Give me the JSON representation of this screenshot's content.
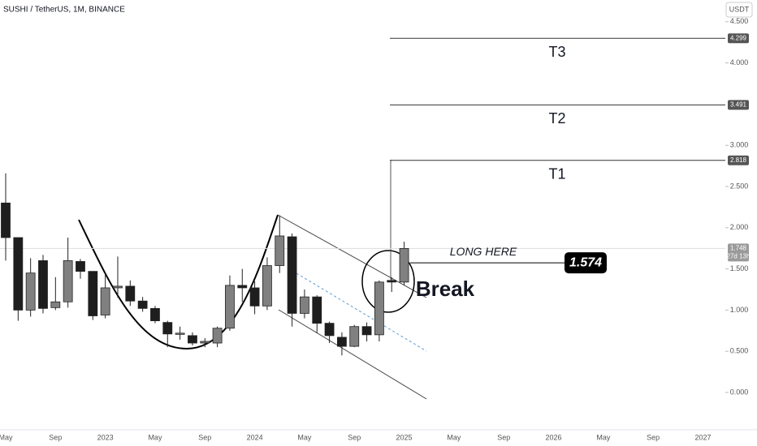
{
  "chart_data": {
    "type": "candlestick",
    "title": "SUSHI / TetherUS, 1M, BINANCE",
    "currency": "USDT",
    "open": [
      2.3,
      1.88,
      1.0,
      1.6,
      1.03,
      1.1,
      1.59,
      1.47,
      0.94,
      1.27,
      1.29,
      1.11,
      1.02,
      0.85,
      0.71,
      0.69,
      0.6,
      0.6,
      0.78,
      1.3,
      1.27,
      1.05,
      1.54,
      1.89,
      0.96,
      1.16,
      0.84,
      0.67,
      0.56,
      0.8,
      0.7,
      1.36,
      1.34
    ],
    "high": [
      2.66,
      1.88,
      1.63,
      1.67,
      1.4,
      1.88,
      1.62,
      1.47,
      1.46,
      1.65,
      1.36,
      1.16,
      1.05,
      0.87,
      0.8,
      0.73,
      0.66,
      0.8,
      1.42,
      1.5,
      1.35,
      1.64,
      2.15,
      1.93,
      1.25,
      1.18,
      0.86,
      0.73,
      0.82,
      0.85,
      1.36,
      1.4,
      1.83
    ],
    "low": [
      1.6,
      0.87,
      0.92,
      0.96,
      1.0,
      1.03,
      1.38,
      0.88,
      0.9,
      1.15,
      1.05,
      0.98,
      0.84,
      0.55,
      0.64,
      0.57,
      0.55,
      0.55,
      0.75,
      1.1,
      0.95,
      1.0,
      1.45,
      0.8,
      0.9,
      0.72,
      0.6,
      0.45,
      0.55,
      0.62,
      0.62,
      1.22,
      1.3
    ],
    "close": [
      1.88,
      1.0,
      1.45,
      1.02,
      1.1,
      1.6,
      1.47,
      0.93,
      1.27,
      1.29,
      1.11,
      1.02,
      0.87,
      0.71,
      0.72,
      0.6,
      0.62,
      0.78,
      1.3,
      1.27,
      1.05,
      1.54,
      1.9,
      0.96,
      1.16,
      0.84,
      0.69,
      0.56,
      0.8,
      0.7,
      1.34,
      1.34,
      1.748
    ],
    "up_color": "#808080",
    "down_color": "#1e1e1e",
    "x_labels": [
      "May",
      "Sep",
      "2023",
      "May",
      "Sep",
      "2024",
      "May",
      "Sep",
      "2025",
      "May",
      "Sep",
      "2026",
      "May",
      "Sep",
      "2027"
    ],
    "ylim": [
      -0.453,
      4.764
    ],
    "yticks": [
      {
        "value": 0,
        "label": "0.000"
      },
      {
        "value": 0.5,
        "label": "0.500"
      },
      {
        "value": 1,
        "label": "1.000"
      },
      {
        "value": 1.5,
        "label": "1.500"
      },
      {
        "value": 2,
        "label": "2.000"
      },
      {
        "value": 2.5,
        "label": "2.500"
      },
      {
        "value": 3,
        "label": "3.000"
      },
      {
        "value": 4,
        "label": "4.000"
      },
      {
        "value": 4.5,
        "label": "4.500"
      }
    ],
    "last_price": 1.748,
    "countdown": "27d 13h",
    "targets": [
      {
        "name": "T3",
        "value": 4.299
      },
      {
        "name": "T2",
        "value": 3.491
      },
      {
        "name": "T1",
        "value": 2.818
      }
    ],
    "entry": {
      "label": "LONG HERE",
      "value": 1.574
    },
    "annotation": "Break"
  }
}
